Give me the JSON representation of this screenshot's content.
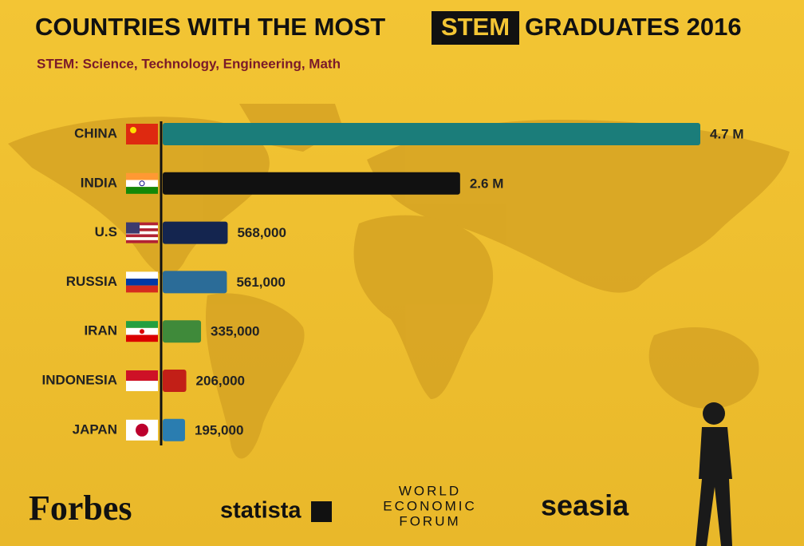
{
  "chart_data": {
    "type": "bar",
    "orientation": "horizontal",
    "title": "COUNTRIES WITH THE MOST",
    "title_highlight": "STEM",
    "title_end": "GRADUATES 2016",
    "subtitle": "STEM: Science, Technology, Engineering, Math",
    "categories": [
      "CHINA",
      "INDIA",
      "U.S",
      "RUSSIA",
      "IRAN",
      "INDONESIA",
      "JAPAN"
    ],
    "values": [
      4700000,
      2600000,
      568000,
      561000,
      335000,
      206000,
      195000
    ],
    "value_labels": [
      "4.7 M",
      "2.6 M",
      "568,000",
      "561,000",
      "335,000",
      "206,000",
      "195,000"
    ],
    "colors": [
      "#1b7d7a",
      "#111111",
      "#14254f",
      "#2b6c98",
      "#3f8a3a",
      "#c21f17",
      "#2a7db0"
    ],
    "sources": [
      "Forbes",
      "statista",
      "WORLD",
      "ECONOMIC",
      "FORUM",
      "seasia"
    ]
  }
}
